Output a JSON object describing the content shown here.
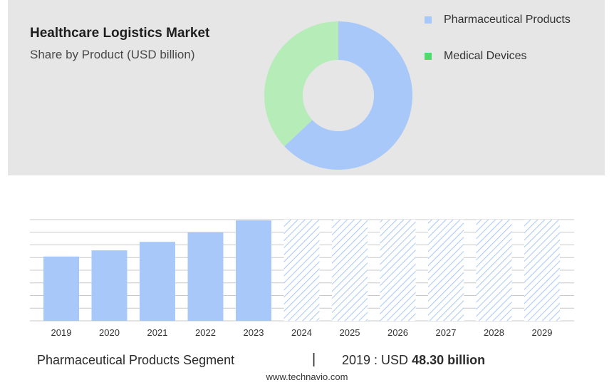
{
  "colors": {
    "pharma": "#a8c8fa",
    "devices": "#b5ecb8",
    "devices_legend": "#4fdb6c",
    "grid": "#c8c8c8"
  },
  "chart_data": [
    {
      "type": "pie",
      "title": "Healthcare Logistics Market",
      "subtitle": "Share by Product (USD billion)",
      "donut": true,
      "slices": [
        {
          "name": "Pharmaceutical Products",
          "share": 0.63
        },
        {
          "name": "Medical Devices",
          "share": 0.37
        }
      ],
      "legend": "right",
      "legend_entries": [
        "Pharmaceutical Products",
        "Medical Devices"
      ]
    },
    {
      "type": "bar",
      "categories": [
        "2019",
        "2020",
        "2021",
        "2022",
        "2023",
        "2024",
        "2025",
        "2026",
        "2027",
        "2028",
        "2029"
      ],
      "series": [
        {
          "name": "Pharmaceutical Products",
          "values": [
            48.3,
            52.9,
            59.3,
            66.3,
            75.4,
            null,
            null,
            null,
            null,
            null,
            null
          ]
        }
      ],
      "forecast_categories": [
        "2024",
        "2025",
        "2026",
        "2027",
        "2028",
        "2029"
      ],
      "ylim": [
        0,
        76
      ],
      "grid": true,
      "yaxis_labels": false
    }
  ],
  "footer": {
    "segment": "Pharmaceutical Products Segment",
    "divider": "|",
    "value_prefix": "2019 : USD ",
    "value_bold": "48.30 billion",
    "source": "www.technavio.com"
  }
}
